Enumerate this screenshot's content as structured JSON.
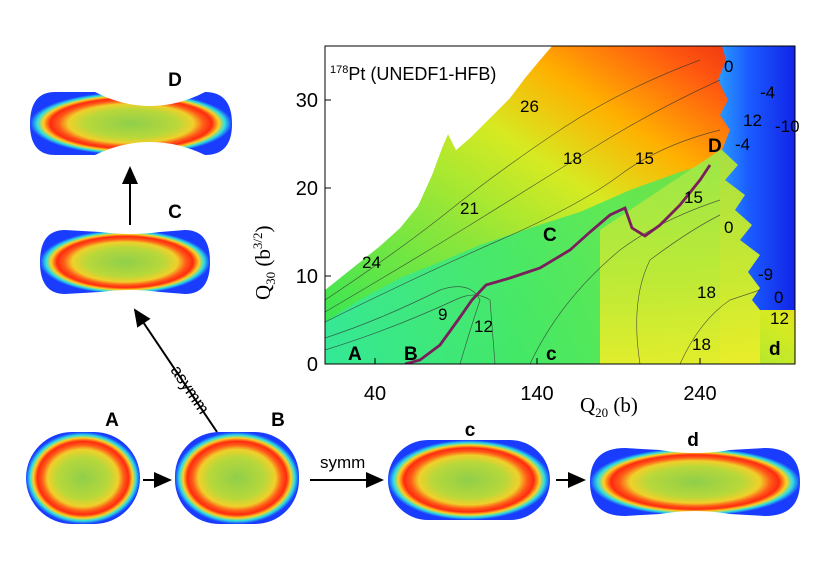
{
  "figure": {
    "plot_title": "Pt (UNEDF1-HFB)",
    "plot_title_mass": "178",
    "xlabel_sym": "Q",
    "xlabel_sub": "20",
    "xlabel_unit": " (b)",
    "ylabel_sym": "Q",
    "ylabel_sub": "30",
    "ylabel_unit": " (b",
    "ylabel_sup": "3/2",
    "ylabel_close": ")",
    "x_ticks": [
      "40",
      "140",
      "240"
    ],
    "y_ticks": [
      "0",
      "10",
      "20",
      "30"
    ],
    "contour_labels": [
      "26",
      "18",
      "15",
      "21",
      "24",
      "9",
      "12",
      "18",
      "18",
      "15",
      "0",
      "-4",
      "12",
      "-10",
      "-4",
      "0",
      "-9",
      "0",
      "12"
    ],
    "path_points": [
      "A",
      "B",
      "C",
      "c",
      "D",
      "d"
    ],
    "shapes": {
      "D": "D",
      "C": "C",
      "A": "A",
      "B": "B",
      "c": "c",
      "d": "d"
    },
    "arrows": {
      "asymm": "asymm",
      "symm": "symm"
    },
    "colors": {
      "path": "#7a1f5c",
      "low": "#1a2cff",
      "high": "#e81a10"
    }
  }
}
